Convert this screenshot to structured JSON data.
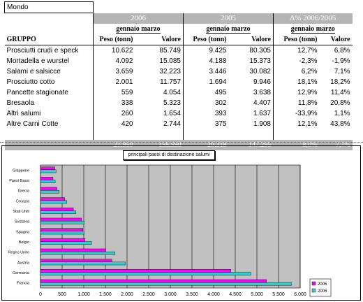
{
  "table": {
    "corner": "Mondo",
    "year_a": "2006",
    "year_b": "2005",
    "delta_title": "Δ% 2006/2005",
    "period": "gennaio marzo",
    "headers": {
      "group": "GRUPPO",
      "peso": "Peso (tonn)",
      "valore": "Valore"
    },
    "rows": [
      {
        "name": "Prosciutti crudi e speck",
        "peso06": "10.622",
        "val06": "85.749",
        "peso05": "9.425",
        "val05": "80.305",
        "dpeso": "12,7%",
        "dval": "6,8%"
      },
      {
        "name": "Mortadella e wurstel",
        "peso06": "4.092",
        "val06": "15.085",
        "peso05": "4.188",
        "val05": "15.373",
        "dpeso": "-2,3%",
        "dval": "-1,9%"
      },
      {
        "name": "Salami e salsicce",
        "peso06": "3.659",
        "val06": "32.223",
        "peso05": "3.446",
        "val05": "30.082",
        "dpeso": "6,2%",
        "dval": "7,1%"
      },
      {
        "name": "Prosciutto cotto",
        "peso06": "2.001",
        "val06": "11.757",
        "peso05": "1.694",
        "val05": "9.946",
        "dpeso": "18,1%",
        "dval": "18,2%"
      },
      {
        "name": "Pancette stagionate",
        "peso06": "559",
        "val06": "4.054",
        "peso05": "495",
        "val05": "3.638",
        "dpeso": "12,9%",
        "dval": "11,4%"
      },
      {
        "name": "Bresaola",
        "peso06": "338",
        "val06": "5.323",
        "peso05": "302",
        "val05": "4.407",
        "dpeso": "11,8%",
        "dval": "20,8%"
      },
      {
        "name": "Altri salumi",
        "peso06": "260",
        "val06": "1.654",
        "peso05": "393",
        "val05": "1.637",
        "dpeso": "-33,9%",
        "dval": "1,1%"
      },
      {
        "name": "Altre Carni Cotte",
        "peso06": "420",
        "val06": "2.744",
        "peso05": "375",
        "val05": "1.908",
        "dpeso": "12,1%",
        "dval": "43,8%"
      }
    ],
    "totals": {
      "peso06": "21.950",
      "val06": "158.590",
      "peso05": "20.318",
      "val05": "147.295",
      "dpeso": "8,0%",
      "dval": "7,7%"
    }
  },
  "chart_data": {
    "type": "bar",
    "orientation": "horizontal",
    "title": "principali paesi di destinazione salumi",
    "categories": [
      "Giappone",
      "Paesi Bassi",
      "Grecia",
      "Croazia",
      "Stati Uniti",
      "Svizzera",
      "Spagna",
      "Belgio",
      "Regno Unito",
      "Austria",
      "Germania",
      "Francia"
    ],
    "series": [
      {
        "name": "2005",
        "color": "#ff00ff",
        "values": [
          330,
          290,
          380,
          560,
          760,
          950,
          980,
          1030,
          1510,
          1650,
          4400,
          5220
        ]
      },
      {
        "name": "2006",
        "color": "#33cccc",
        "values": [
          360,
          340,
          430,
          610,
          820,
          1010,
          1010,
          1180,
          1720,
          1960,
          4860,
          5800
        ]
      }
    ],
    "xlim": [
      0,
      6000
    ],
    "xticks": [
      "0",
      "500",
      "1.000",
      "1.500",
      "2.000",
      "2.500",
      "3.000",
      "3.500",
      "4.000",
      "4.500",
      "5.000",
      "5.500",
      "6.000"
    ],
    "grid": true,
    "legend": "bottom-right",
    "colors": {
      "plot_bg": "#c0c0c0"
    }
  }
}
